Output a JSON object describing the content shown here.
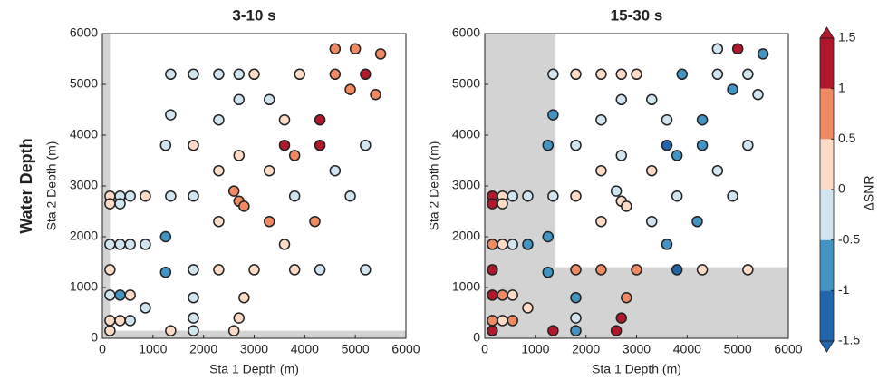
{
  "row_label": "Water Depth",
  "colorbar": {
    "label": "ΔSNR",
    "lim": [
      -1.5,
      1.5
    ],
    "ticks": [
      -1.5,
      -1,
      -0.5,
      0,
      0.5,
      1,
      1.5
    ],
    "colors": [
      "#2166ac",
      "#4393c3",
      "#d1e5f0",
      "#fddbc7",
      "#ef8a62",
      "#b2182b"
    ]
  },
  "chart_data": [
    {
      "type": "scatter",
      "title": "3-10 s",
      "xlabel": "Sta 1 Depth (m)",
      "ylabel": "Sta 2 Depth (m)",
      "xlim": [
        0,
        6000
      ],
      "ylim": [
        0,
        6000
      ],
      "xticks": [
        0,
        1000,
        2000,
        3000,
        4000,
        5000,
        6000
      ],
      "yticks": [
        0,
        1000,
        2000,
        3000,
        4000,
        5000,
        6000
      ],
      "shaded_color": "#d3d3d3",
      "shaded": [
        {
          "x": [
            0,
            150
          ],
          "y": [
            0,
            6000
          ]
        },
        {
          "x": [
            0,
            6000
          ],
          "y": [
            0,
            150
          ]
        }
      ],
      "x": [
        150,
        350,
        550,
        850,
        150,
        350,
        150,
        350,
        550,
        850,
        150,
        150,
        350,
        550,
        850,
        150,
        350,
        550,
        150,
        1350,
        1800,
        1800,
        1800,
        1250,
        1250,
        1350,
        1250,
        1350,
        1350,
        1800,
        1800,
        1800,
        1800,
        2300,
        2300,
        2300,
        2300,
        2300,
        2600,
        2700,
        2800,
        2700,
        2600,
        2800,
        2700,
        2700,
        2700,
        3000,
        3000,
        3300,
        3300,
        3300,
        3600,
        3600,
        3600,
        3800,
        3800,
        3800,
        4200,
        4300,
        4300,
        4300,
        4600,
        4600,
        4900,
        4900,
        5200,
        5200,
        5200,
        5500,
        5000,
        4600,
        5400,
        3900
      ],
      "y": [
        2800,
        2800,
        2800,
        2800,
        2650,
        2650,
        1850,
        1850,
        1850,
        1850,
        1350,
        850,
        850,
        850,
        600,
        350,
        350,
        350,
        150,
        150,
        150,
        400,
        800,
        1300,
        2000,
        2800,
        3800,
        4400,
        5200,
        5200,
        3800,
        2800,
        1350,
        1350,
        2300,
        3300,
        4300,
        5200,
        150,
        400,
        800,
        2700,
        2900,
        2600,
        3600,
        4700,
        5200,
        1350,
        5200,
        2300,
        3300,
        4700,
        1850,
        3800,
        4300,
        1350,
        2800,
        3600,
        2300,
        3800,
        4300,
        1350,
        3300,
        5200,
        2800,
        4900,
        1350,
        3800,
        5200,
        5600,
        5700,
        5700,
        4800,
        5200
      ],
      "values": [
        0.2,
        -0.2,
        -0.3,
        0.1,
        0.3,
        -0.1,
        -0.3,
        -0.2,
        -0.4,
        -0.3,
        0.2,
        -0.3,
        -0.6,
        0.1,
        -0.2,
        0.3,
        0.2,
        -0.3,
        0.1,
        0.4,
        -0.2,
        -0.3,
        -0.1,
        -0.7,
        -0.6,
        -0.2,
        -0.3,
        -0.3,
        -0.2,
        -0.3,
        0.3,
        -0.2,
        -0.2,
        0.2,
        0.3,
        0.2,
        -0.1,
        -0.2,
        0.4,
        0.3,
        0.2,
        0.8,
        0.7,
        0.9,
        0.3,
        -0.2,
        -0.3,
        0.2,
        0.2,
        0.6,
        0.2,
        -0.2,
        0.2,
        1.2,
        0.2,
        0.3,
        -0.2,
        0.7,
        0.6,
        1.1,
        1.2,
        -0.3,
        -0.3,
        0.7,
        -0.2,
        0.8,
        -0.2,
        -0.3,
        1.2,
        0.8,
        0.9,
        0.6,
        0.7,
        0.3
      ]
    },
    {
      "type": "scatter",
      "title": "15-30 s",
      "xlabel": "Sta 1 Depth (m)",
      "ylabel": "Sta 2 Depth (m)",
      "xlim": [
        0,
        6000
      ],
      "ylim": [
        0,
        6000
      ],
      "xticks": [
        0,
        1000,
        2000,
        3000,
        4000,
        5000,
        6000
      ],
      "yticks": [
        0,
        1000,
        2000,
        3000,
        4000,
        5000,
        6000
      ],
      "shaded_color": "#d3d3d3",
      "shaded": [
        {
          "x": [
            0,
            1400
          ],
          "y": [
            0,
            6000
          ]
        },
        {
          "x": [
            0,
            6000
          ],
          "y": [
            0,
            1400
          ]
        }
      ],
      "x": [
        150,
        350,
        550,
        850,
        150,
        350,
        150,
        350,
        550,
        850,
        150,
        150,
        350,
        550,
        850,
        150,
        350,
        550,
        150,
        1350,
        1800,
        1800,
        1800,
        1250,
        1250,
        1350,
        1250,
        1350,
        1350,
        1800,
        1800,
        1800,
        1800,
        2300,
        2300,
        2300,
        2300,
        2300,
        2600,
        2700,
        2800,
        2700,
        2600,
        2800,
        2700,
        2700,
        2700,
        3000,
        3000,
        3300,
        3300,
        3300,
        3600,
        3600,
        3600,
        3800,
        3800,
        3800,
        4200,
        4300,
        4300,
        4300,
        4600,
        4600,
        4900,
        4900,
        5200,
        5200,
        5200,
        5500,
        5000,
        4600,
        5400,
        3900
      ],
      "y": [
        2800,
        2800,
        2800,
        2800,
        2650,
        2650,
        1850,
        1850,
        1850,
        1850,
        1350,
        850,
        850,
        850,
        600,
        350,
        350,
        350,
        150,
        150,
        150,
        400,
        800,
        1300,
        2000,
        2800,
        3800,
        4400,
        5200,
        5200,
        3800,
        2800,
        1350,
        1350,
        2300,
        3300,
        4300,
        5200,
        150,
        400,
        800,
        2700,
        2900,
        2600,
        3600,
        4700,
        5200,
        1350,
        5200,
        2300,
        3300,
        4700,
        1850,
        3800,
        4300,
        1350,
        2800,
        3600,
        2300,
        3800,
        4300,
        1350,
        3300,
        5200,
        2800,
        4900,
        1350,
        3800,
        5200,
        5600,
        5700,
        5700,
        4800,
        5200
      ],
      "values": [
        1.1,
        0.3,
        -0.2,
        -0.3,
        1.2,
        0.2,
        0.7,
        0.3,
        -0.3,
        -0.7,
        1.2,
        1.1,
        0.7,
        0.3,
        0.2,
        0.8,
        0.3,
        0.6,
        1.2,
        1.2,
        -0.7,
        -0.3,
        -0.6,
        -0.7,
        -0.8,
        -0.3,
        -0.7,
        -0.6,
        -0.3,
        0.2,
        -0.3,
        0.2,
        0.7,
        0.6,
        0.3,
        0.2,
        -0.3,
        0.3,
        1.2,
        1.1,
        0.7,
        0.3,
        -0.2,
        0.2,
        -0.3,
        -0.2,
        0.2,
        0.7,
        0.3,
        -0.3,
        0.2,
        -0.3,
        -0.6,
        -1.2,
        -0.3,
        -1.1,
        -0.2,
        -0.7,
        -0.6,
        -0.8,
        -0.7,
        0.2,
        -0.3,
        -0.3,
        -0.2,
        -0.6,
        0.3,
        -0.2,
        -0.3,
        -0.6,
        1.1,
        -0.3,
        -0.2,
        -0.7
      ]
    }
  ]
}
